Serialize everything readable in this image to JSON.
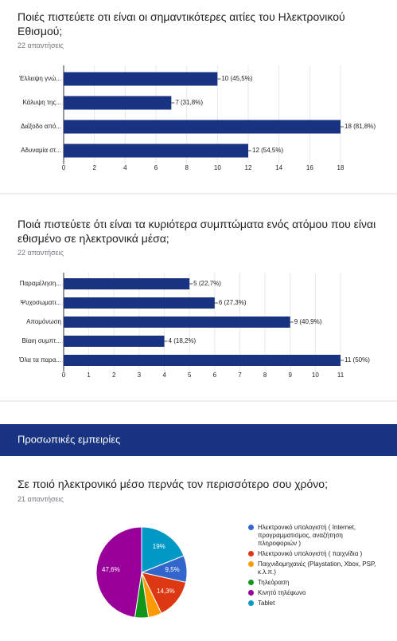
{
  "section": {
    "title": "Προσωπικές εμπειρίες"
  },
  "chart_data": [
    {
      "type": "bar",
      "orientation": "horizontal",
      "title": "Ποιές πιστεύετε οτι είναι οι σημαντικότερες αιτίες του Ηλεκτρονικού Εθισμού;",
      "subtitle": "22 απαντήσεις",
      "categories": [
        "Έλλειψη γνώ...",
        "Κάλυψη της...",
        "Διέξοδο από...",
        "Αδυναμία στ..."
      ],
      "values": [
        10,
        7,
        18,
        12
      ],
      "value_labels": [
        "10 (45,5%)",
        "7 (31,8%)",
        "18 (81,8%)",
        "12 (54,5%)"
      ],
      "color": "#173381",
      "xlim": [
        0,
        18
      ],
      "xticks": [
        0,
        2,
        4,
        6,
        8,
        10,
        12,
        14,
        16,
        18
      ]
    },
    {
      "type": "bar",
      "orientation": "horizontal",
      "title": "Ποιά πιστεύετε ότι είναι τα κυριότερα συμπτώματα ενός ατόμου που είναι εθισμένο σε ηλεκτρονικά μέσα;",
      "subtitle": "22 απαντήσεις",
      "categories": [
        "Παραμέληση...",
        "Ψυχοσωματι...",
        "Απομόνωση",
        "Βίαιη συμπτ...",
        "Όλα τα παρα..."
      ],
      "values": [
        5,
        6,
        9,
        4,
        11
      ],
      "value_labels": [
        "5 (22,7%)",
        "6 (27,3%)",
        "9 (40,9%)",
        "4 (18,2%)",
        "11 (50%)"
      ],
      "color": "#173381",
      "xlim": [
        0,
        11
      ],
      "xticks": [
        0,
        1,
        2,
        3,
        4,
        5,
        6,
        7,
        8,
        9,
        10,
        11
      ]
    },
    {
      "type": "pie",
      "title": "Σε ποιό ηλεκτρονικό μέσο περνάς τον περισσότερο σου χρόνο;",
      "subtitle": "21 απαντήσεις",
      "categories": [
        "Ηλεκτρονικό υπολογιστή ( Internet, προγραμματισμος, αναζήτηση πληροφοριών )",
        "Ηλεκτρονικό υπολογιστή ( παιχνίδια )",
        "Παιχνιδομηχανές (Playstation, Xbox, PSP, κ.λ.π.)",
        "Τηλεόραση",
        "Κινητό τηλέφωνο",
        "Tablet"
      ],
      "values": [
        9.5,
        14.3,
        4.8,
        4.8,
        47.6,
        19
      ],
      "value_labels": [
        "9,5%",
        "14,3%",
        null,
        null,
        "47,6%",
        "19%"
      ],
      "colors": [
        "#3366cc",
        "#dc3912",
        "#ff9900",
        "#109618",
        "#990099",
        "#0099c6"
      ],
      "legend": "right"
    }
  ]
}
